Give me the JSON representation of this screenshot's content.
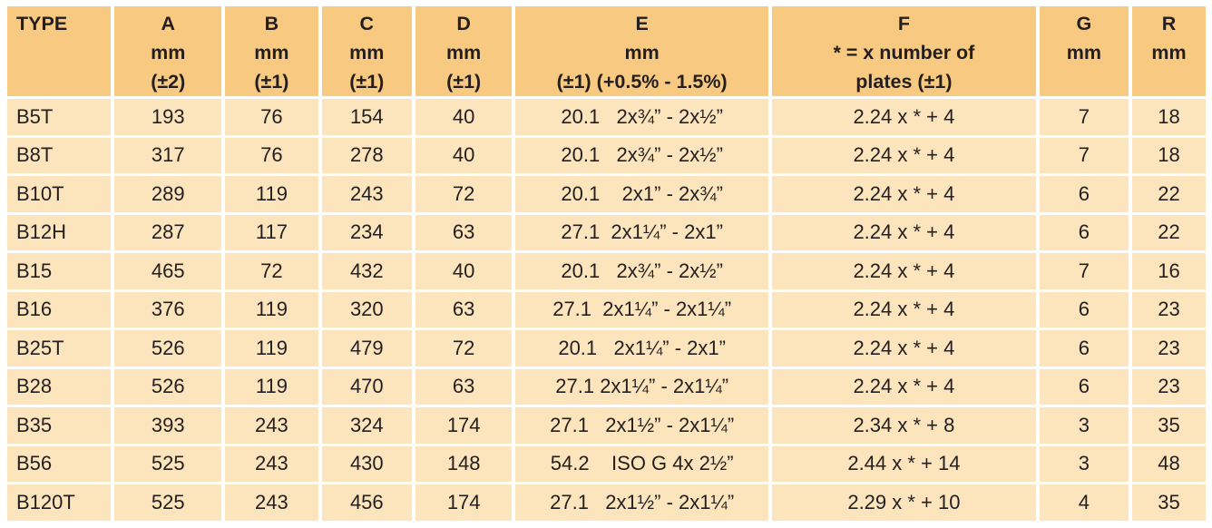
{
  "table": {
    "columns": [
      {
        "id": "type",
        "lines": [
          "TYPE"
        ]
      },
      {
        "id": "a",
        "lines": [
          "A",
          "mm",
          "(±2)"
        ]
      },
      {
        "id": "b",
        "lines": [
          "B",
          "mm",
          "(±1)"
        ]
      },
      {
        "id": "c",
        "lines": [
          "C",
          "mm",
          "(±1)"
        ]
      },
      {
        "id": "d",
        "lines": [
          "D",
          "mm",
          "(±1)"
        ]
      },
      {
        "id": "e",
        "lines": [
          "E",
          "mm",
          "(±1) (+0.5% - 1.5%)"
        ]
      },
      {
        "id": "f",
        "lines": [
          "F",
          "* = x number of",
          "plates (±1)"
        ]
      },
      {
        "id": "g",
        "lines": [
          "G",
          "mm"
        ]
      },
      {
        "id": "r",
        "lines": [
          "R",
          "mm"
        ]
      }
    ],
    "rows": [
      {
        "type": "B5T",
        "a": "193",
        "b": "76",
        "c": "154",
        "d": "40",
        "e": "20.1   2x¾” - 2x½”",
        "f": "2.24 x * + 4",
        "g": "7",
        "r": "18"
      },
      {
        "type": "B8T",
        "a": "317",
        "b": "76",
        "c": "278",
        "d": "40",
        "e": "20.1   2x¾” - 2x½”",
        "f": "2.24 x * + 4",
        "g": "7",
        "r": "18"
      },
      {
        "type": "B10T",
        "a": "289",
        "b": "119",
        "c": "243",
        "d": "72",
        "e": "20.1    2x1” - 2x¾”",
        "f": "2.24 x * + 4",
        "g": "6",
        "r": "22"
      },
      {
        "type": "B12H",
        "a": "287",
        "b": "117",
        "c": "234",
        "d": "63",
        "e": "27.1  2x1¼” - 2x1”",
        "f": "2.24 x * + 4",
        "g": "6",
        "r": "22"
      },
      {
        "type": "B15",
        "a": "465",
        "b": "72",
        "c": "432",
        "d": "40",
        "e": "20.1   2x¾” - 2x½”",
        "f": "2.24 x * + 4",
        "g": "7",
        "r": "16"
      },
      {
        "type": "B16",
        "a": "376",
        "b": "119",
        "c": "320",
        "d": "63",
        "e": "27.1  2x1¼” - 2x1¼”",
        "f": "2.24 x * + 4",
        "g": "6",
        "r": "23"
      },
      {
        "type": "B25T",
        "a": "526",
        "b": "119",
        "c": "479",
        "d": "72",
        "e": "20.1   2x1¼” - 2x1”",
        "f": "2.24 x * + 4",
        "g": "6",
        "r": "23"
      },
      {
        "type": "B28",
        "a": "526",
        "b": "119",
        "c": "470",
        "d": "63",
        "e": "27.1 2x1¼” - 2x1¼”",
        "f": "2.24 x * + 4",
        "g": "6",
        "r": "23"
      },
      {
        "type": "B35",
        "a": "393",
        "b": "243",
        "c": "324",
        "d": "174",
        "e": "27.1   2x1½” - 2x1¼”",
        "f": "2.34 x * + 8",
        "g": "3",
        "r": "35"
      },
      {
        "type": "B56",
        "a": "525",
        "b": "243",
        "c": "430",
        "d": "148",
        "e": "54.2    ISO G 4x 2½”",
        "f": "2.44 x * + 14",
        "g": "3",
        "r": "48"
      },
      {
        "type": "B120T",
        "a": "525",
        "b": "243",
        "c": "456",
        "d": "174",
        "e": "27.1   2x1½” - 2x1¼”",
        "f": "2.29 x * + 10",
        "g": "4",
        "r": "35"
      }
    ]
  },
  "colors": {
    "header_bg": "#f8c981",
    "row_bg": "#fce4bd",
    "grid": "#ffffff",
    "text": "#231f20"
  }
}
